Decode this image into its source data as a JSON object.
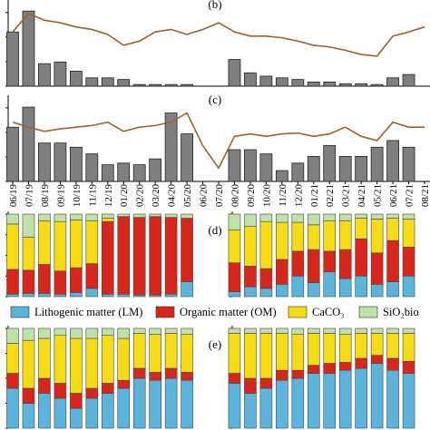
{
  "chart_data": [
    {
      "type": "bar-line",
      "title": "(b)",
      "ylim": [
        0,
        100
      ],
      "bars": {
        "color": "#7f7f7f",
        "values": [
          65,
          90,
          27,
          29,
          18,
          10,
          10,
          8,
          2,
          2,
          2,
          2,
          null,
          null,
          32,
          16,
          12,
          10,
          8,
          5,
          5,
          3,
          3,
          2,
          10,
          14,
          null
        ]
      },
      "line": {
        "color": "#a0622a",
        "values": [
          65,
          87,
          79,
          76,
          71,
          68,
          62,
          49,
          54,
          65,
          68,
          62,
          68,
          76,
          65,
          60,
          60,
          58,
          54,
          49,
          47,
          43,
          38,
          36,
          60,
          65,
          71
        ]
      }
    },
    {
      "type": "bar-line",
      "title": "(c)",
      "ylim": [
        0,
        100
      ],
      "categories": [
        "06/19",
        "07/19",
        "08/19",
        "09/19",
        "10/19",
        "11/19",
        "12/19",
        "01/20",
        "02/20",
        "03/20",
        "04/20",
        "05/20",
        "06/20",
        "07/20",
        "08/20",
        "09/20",
        "10/20",
        "11/20",
        "12/20",
        "01/21",
        "02/21",
        "03/21",
        "04/21",
        "05/21",
        "06/21",
        "07/21",
        "08/21"
      ],
      "bars": {
        "color": "#7f7f7f",
        "values": [
          65,
          89,
          46,
          46,
          41,
          33,
          20,
          22,
          20,
          27,
          82,
          57,
          null,
          null,
          38,
          38,
          33,
          13,
          22,
          30,
          43,
          30,
          30,
          41,
          49,
          41,
          null
        ]
      },
      "line": {
        "color": "#a0622a",
        "values": [
          71,
          65,
          60,
          63,
          65,
          67,
          71,
          60,
          65,
          67,
          71,
          82,
          43,
          16,
          54,
          57,
          54,
          57,
          58,
          54,
          57,
          65,
          54,
          49,
          71,
          65,
          65
        ]
      }
    },
    {
      "type": "stacked-bar",
      "title": "(d)",
      "ylim": [
        0,
        100
      ],
      "series": [
        {
          "name": "Lithogenic matter (LM)",
          "color": "#5ab4dc",
          "values": [
            3,
            4,
            4,
            3,
            5,
            10,
            3,
            3,
            2,
            2,
            3,
            18,
            null,
            null,
            6,
            12,
            10,
            15,
            25,
            17,
            30,
            22,
            25,
            15,
            18,
            25,
            null
          ]
        },
        {
          "name": "Organic matter (OM)",
          "color": "#d9261c",
          "values": [
            30,
            28,
            35,
            28,
            30,
            30,
            88,
            94,
            94,
            95,
            93,
            77,
            null,
            null,
            35,
            25,
            24,
            30,
            30,
            40,
            25,
            35,
            45,
            38,
            50,
            35,
            null
          ]
        },
        {
          "name": "CaCO₃",
          "color": "#f5dc14",
          "values": [
            55,
            40,
            53,
            60,
            58,
            52,
            4,
            0,
            0,
            0,
            0,
            0,
            null,
            null,
            40,
            48,
            57,
            45,
            35,
            30,
            37,
            35,
            25,
            41,
            27,
            34,
            null
          ]
        },
        {
          "name": "SiO₂bio",
          "color": "#bfe3a6",
          "values": [
            12,
            28,
            8,
            9,
            7,
            8,
            5,
            3,
            4,
            3,
            4,
            5,
            null,
            null,
            19,
            15,
            9,
            10,
            10,
            13,
            8,
            8,
            5,
            6,
            5,
            6,
            null
          ]
        }
      ]
    },
    {
      "type": "stacked-bar",
      "title": "(e)",
      "ylim": [
        0,
        100
      ],
      "series": [
        {
          "color": "#5ab4dc",
          "values": [
            40,
            25,
            35,
            30,
            20,
            30,
            35,
            40,
            50,
            48,
            50,
            48,
            null,
            null,
            45,
            35,
            40,
            48,
            50,
            55,
            55,
            58,
            60,
            65,
            58,
            55,
            null
          ]
        },
        {
          "color": "#d9261c",
          "values": [
            15,
            15,
            15,
            15,
            15,
            10,
            10,
            8,
            10,
            8,
            10,
            8,
            null,
            null,
            10,
            15,
            10,
            10,
            8,
            8,
            10,
            8,
            10,
            8,
            12,
            12,
            null
          ]
        },
        {
          "color": "#f5dc14",
          "values": [
            30,
            48,
            40,
            48,
            55,
            50,
            48,
            42,
            35,
            38,
            35,
            38,
            null,
            null,
            40,
            45,
            45,
            37,
            36,
            32,
            30,
            28,
            25,
            22,
            25,
            28,
            null
          ]
        },
        {
          "color": "#bfe3a6",
          "values": [
            15,
            12,
            10,
            7,
            10,
            10,
            7,
            10,
            5,
            6,
            5,
            6,
            null,
            null,
            5,
            5,
            5,
            5,
            6,
            5,
            5,
            6,
            5,
            5,
            5,
            5,
            null
          ]
        }
      ]
    }
  ]
}
